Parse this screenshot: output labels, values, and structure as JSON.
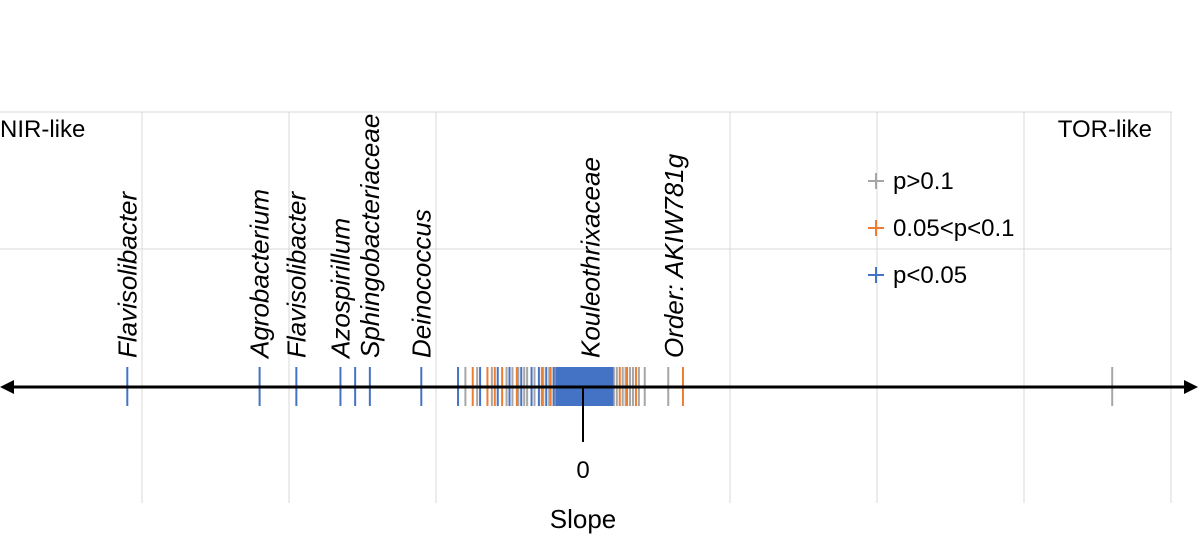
{
  "chart_data": {
    "type": "scatter",
    "xlabel": "Slope",
    "zero_label": "0",
    "left_label": "NIR-like",
    "right_label": "TOR-like",
    "grid": true,
    "legend_placement": "top-right",
    "colors": {
      "gray": "#a6a6a6",
      "orange": "#ed7d31",
      "blue": "#4472c4",
      "axis": "#000000",
      "grid": "#d9d9d9"
    },
    "legend": [
      {
        "name": "p>0.1",
        "color": "#a6a6a6"
      },
      {
        "name": "0.05<p<0.1",
        "color": "#ed7d31"
      },
      {
        "name": "p<0.05",
        "color": "#4472c4"
      }
    ],
    "taxa_labels": [
      {
        "text": "Flavisolibacter",
        "x": -3.1
      },
      {
        "text": "Agrobacterium",
        "x": -2.2
      },
      {
        "text": "Flavisolibacter",
        "x": -1.95
      },
      {
        "text": "Azospirillum",
        "x": -1.65
      },
      {
        "text": "Sphingobacteriaceae",
        "x": -1.45
      },
      {
        "text": "Deinococcus",
        "x": -1.1
      },
      {
        "text": "Kouleothrixaceae",
        "x": 0.05
      },
      {
        "text": "Order: AKIW781g",
        "x": 0.62
      }
    ],
    "series": [
      {
        "name": "p<0.05",
        "color": "#4472c4",
        "values": [
          -3.1,
          -2.2,
          -1.95,
          -1.65,
          -1.55,
          -1.45,
          -1.1,
          -0.85,
          -0.7,
          -0.58,
          -0.5,
          -0.42,
          -0.35,
          -0.3,
          -0.25,
          -0.2,
          -0.18,
          -0.16,
          -0.14,
          -0.12,
          -0.1,
          -0.08,
          -0.06,
          -0.04,
          -0.02,
          0.0,
          0.02,
          0.04,
          0.06,
          0.08,
          0.1,
          0.12,
          0.14,
          0.16,
          0.18,
          0.2
        ]
      },
      {
        "name": "0.05<p<0.1",
        "color": "#ed7d31",
        "values": [
          -0.75,
          -0.65,
          -0.6,
          -0.55,
          -0.5,
          -0.45,
          -0.22,
          -0.28,
          0.25,
          0.3,
          0.36,
          0.68
        ]
      },
      {
        "name": "p>0.1",
        "color": "#a6a6a6",
        "values": [
          -0.8,
          -0.72,
          -0.62,
          -0.52,
          -0.48,
          -0.44,
          -0.4,
          -0.38,
          -0.33,
          -0.27,
          -0.23,
          -0.19,
          -0.15,
          -0.11,
          -0.07,
          -0.03,
          0.01,
          0.05,
          0.09,
          0.13,
          0.17,
          0.21,
          0.23,
          0.27,
          0.29,
          0.32,
          0.34,
          0.38,
          0.42,
          0.58,
          3.6
        ]
      }
    ]
  }
}
